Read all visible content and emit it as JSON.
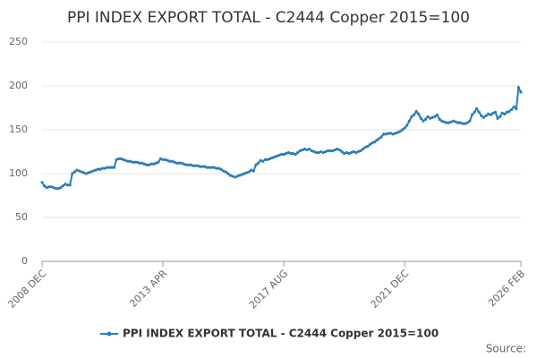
{
  "chart_data": {
    "type": "line",
    "title": "PPI INDEX EXPORT TOTAL - C2444 Copper 2015=100",
    "source": "Source:",
    "categories": [
      "2008 DEC",
      null,
      null,
      null,
      null,
      null,
      null,
      null,
      null,
      null,
      null,
      null,
      null,
      null,
      null,
      null,
      null,
      null,
      null,
      null,
      null,
      null,
      null,
      null,
      null,
      null,
      null,
      null,
      null,
      null,
      null,
      null,
      null,
      null,
      null,
      null,
      null,
      null,
      null,
      null,
      null,
      null,
      null,
      null,
      null,
      null,
      null,
      null,
      null,
      null,
      null,
      null,
      "2013 APR",
      null,
      null,
      null,
      null,
      null,
      null,
      null,
      null,
      null,
      null,
      null,
      null,
      null,
      null,
      null,
      null,
      null,
      null,
      null,
      null,
      null,
      null,
      null,
      null,
      null,
      null,
      null,
      null,
      null,
      null,
      null,
      null,
      null,
      null,
      null,
      null,
      null,
      null,
      null,
      null,
      null,
      null,
      null,
      null,
      null,
      null,
      null,
      null,
      null,
      null,
      null,
      "2017 AUG",
      null,
      null,
      null,
      null,
      null,
      null,
      null,
      null,
      null,
      null,
      null,
      null,
      null,
      null,
      null,
      null,
      null,
      null,
      null,
      null,
      null,
      null,
      null,
      null,
      null,
      null,
      null,
      null,
      null,
      null,
      null,
      null,
      null,
      null,
      null,
      null,
      null,
      null,
      null,
      null,
      null,
      null,
      null,
      null,
      null,
      null,
      null,
      null,
      null,
      null,
      null,
      "2021 DEC",
      null,
      null,
      null,
      null,
      null,
      null,
      null,
      null,
      null,
      null,
      null,
      null,
      null,
      null,
      null,
      null,
      null,
      null,
      null,
      null,
      null,
      null,
      null,
      null,
      null,
      null,
      null,
      null,
      null,
      null,
      null,
      null,
      null,
      null,
      null,
      null,
      null,
      null,
      null,
      null,
      null,
      null,
      null,
      null,
      null,
      null,
      null,
      null,
      null,
      "2026 FEB"
    ],
    "series": [
      {
        "name": "PPI INDEX EXPORT TOTAL - C2444 Copper 2015=100",
        "color": "#2a7db8",
        "values": [
          90,
          86,
          84,
          85,
          85,
          84,
          83,
          83,
          84,
          86,
          88,
          87,
          87,
          100,
          102,
          104,
          103,
          102,
          101,
          100,
          101,
          102,
          103,
          104,
          105,
          105,
          106,
          106,
          107,
          107,
          107,
          107,
          116,
          117,
          117,
          116,
          115,
          114,
          114,
          113,
          113,
          113,
          112,
          112,
          111,
          110,
          110,
          111,
          111,
          112,
          113,
          117,
          116,
          116,
          115,
          114,
          114,
          113,
          112,
          112,
          112,
          111,
          110,
          110,
          110,
          109,
          109,
          109,
          108,
          108,
          108,
          107,
          107,
          107,
          107,
          106,
          106,
          105,
          103,
          102,
          100,
          98,
          97,
          96,
          97,
          98,
          99,
          100,
          101,
          102,
          104,
          103,
          110,
          112,
          115,
          114,
          116,
          116,
          117,
          118,
          119,
          120,
          121,
          122,
          122,
          123,
          124,
          123,
          123,
          122,
          124,
          126,
          127,
          128,
          127,
          128,
          126,
          125,
          124,
          124,
          125,
          124,
          125,
          126,
          126,
          126,
          127,
          128,
          127,
          125,
          123,
          124,
          123,
          124,
          125,
          124,
          125,
          126,
          128,
          130,
          131,
          133,
          135,
          136,
          138,
          140,
          142,
          145,
          145,
          146,
          146,
          145,
          146,
          147,
          148,
          150,
          152,
          155,
          160,
          165,
          167,
          171,
          168,
          163,
          160,
          162,
          165,
          163,
          164,
          165,
          167,
          162,
          160,
          159,
          158,
          158,
          159,
          160,
          159,
          158,
          158,
          157,
          157,
          158,
          160,
          167,
          170,
          174,
          170,
          166,
          164,
          166,
          168,
          167,
          169,
          170,
          163,
          165,
          169,
          168,
          170,
          171,
          173,
          176,
          174,
          198,
          193
        ]
      }
    ],
    "ylim": [
      0,
      250
    ],
    "yticks": [
      0,
      50,
      100,
      150,
      200,
      250
    ],
    "grid": true,
    "legend": "bottom"
  }
}
